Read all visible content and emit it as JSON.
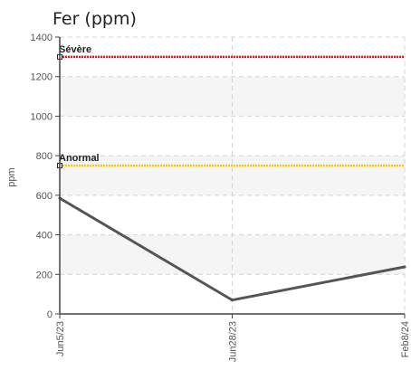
{
  "chart_data": {
    "type": "line",
    "title": "Fer (ppm)",
    "xlabel": "",
    "ylabel": "ppm",
    "categories": [
      "Jun5/23",
      "Jun28/23",
      "Feb8/24"
    ],
    "series": [
      {
        "values": [
          585,
          70,
          238
        ],
        "color": "#555555"
      }
    ],
    "ylim": [
      0,
      1400
    ],
    "yticks": [
      0,
      200,
      400,
      600,
      800,
      1000,
      1200,
      1400
    ],
    "thresholds": [
      {
        "label": "Sévère",
        "value": 1300,
        "color": "#e8131b"
      },
      {
        "label": "Anormal",
        "value": 750,
        "color": "#f5c518"
      }
    ],
    "grid": true,
    "legend": "none"
  }
}
